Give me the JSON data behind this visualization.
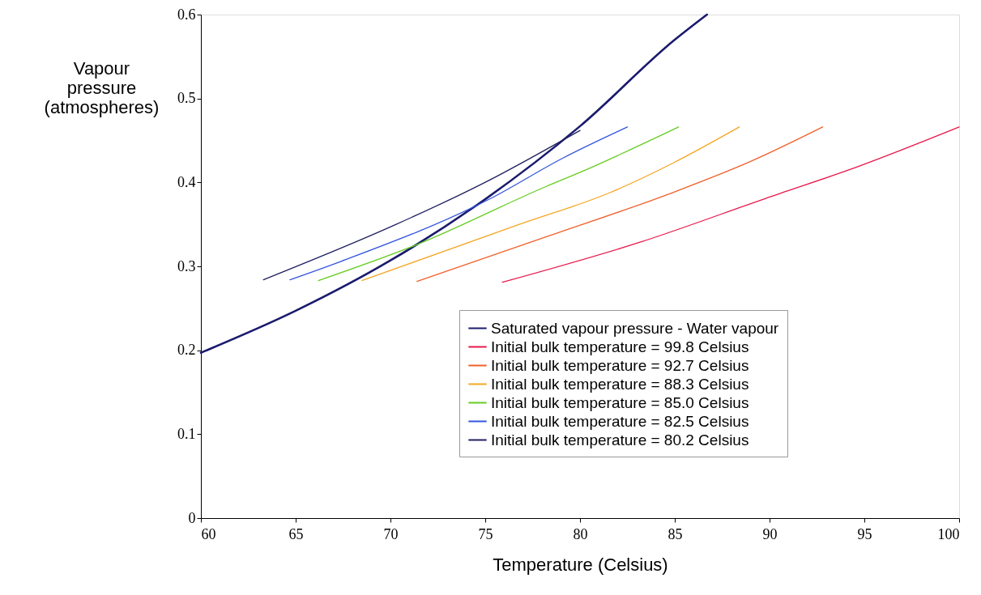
{
  "chart_data": {
    "type": "line",
    "xlabel": "Temperature (Celsius)",
    "ylabel": "Vapour pressure (atmospheres)",
    "xlim": [
      60,
      100
    ],
    "ylim": [
      0,
      0.6
    ],
    "xticks": [
      60,
      65,
      70,
      75,
      80,
      85,
      90,
      95,
      100
    ],
    "yticks": [
      0,
      0.1,
      0.2,
      0.3,
      0.4,
      0.5,
      0.6
    ],
    "grid": false,
    "legend": "bottom right",
    "marker": "none",
    "line_style": "solid",
    "series": [
      {
        "name": "Saturated vapour pressure - Water vapour",
        "color": "#1a1a6e",
        "x": [
          60,
          65,
          70,
          75,
          80,
          85,
          86.7
        ],
        "values": [
          0.197,
          0.247,
          0.307,
          0.38,
          0.467,
          0.57,
          0.6
        ]
      },
      {
        "name": "Initial bulk temperature = 99.8 Celsius",
        "color": "#e8174a",
        "x": [
          75.9,
          83.2,
          89.8,
          94.8,
          100
        ],
        "values": [
          0.281,
          0.329,
          0.381,
          0.42,
          0.466
        ]
      },
      {
        "name": "Initial bulk temperature = 92.7 Celsius",
        "color": "#f0602a",
        "x": [
          71.4,
          78.2,
          84.9,
          89.0,
          92.8
        ],
        "values": [
          0.282,
          0.335,
          0.388,
          0.425,
          0.466
        ]
      },
      {
        "name": "Initial bulk temperature = 88.3 Celsius",
        "color": "#f5a623",
        "x": [
          68.5,
          76.8,
          81.6,
          84.9,
          88.4
        ],
        "values": [
          0.283,
          0.35,
          0.388,
          0.423,
          0.466
        ]
      },
      {
        "name": "Initial bulk temperature = 85.0 Celsius",
        "color": "#66cc22",
        "x": [
          66.2,
          71.3,
          78.2,
          80.0,
          85.2
        ],
        "values": [
          0.283,
          0.325,
          0.395,
          0.412,
          0.466
        ]
      },
      {
        "name": "Initial bulk temperature = 82.5 Celsius",
        "color": "#3355dd",
        "x": [
          64.7,
          67.4,
          75.3,
          79.1,
          82.5
        ],
        "values": [
          0.284,
          0.306,
          0.381,
          0.429,
          0.466
        ]
      },
      {
        "name": "Initial bulk temperature = 80.2 Celsius",
        "color": "#202060",
        "x": [
          63.3,
          70.3,
          74.9,
          80.0
        ],
        "values": [
          0.284,
          0.35,
          0.399,
          0.462
        ]
      }
    ]
  }
}
